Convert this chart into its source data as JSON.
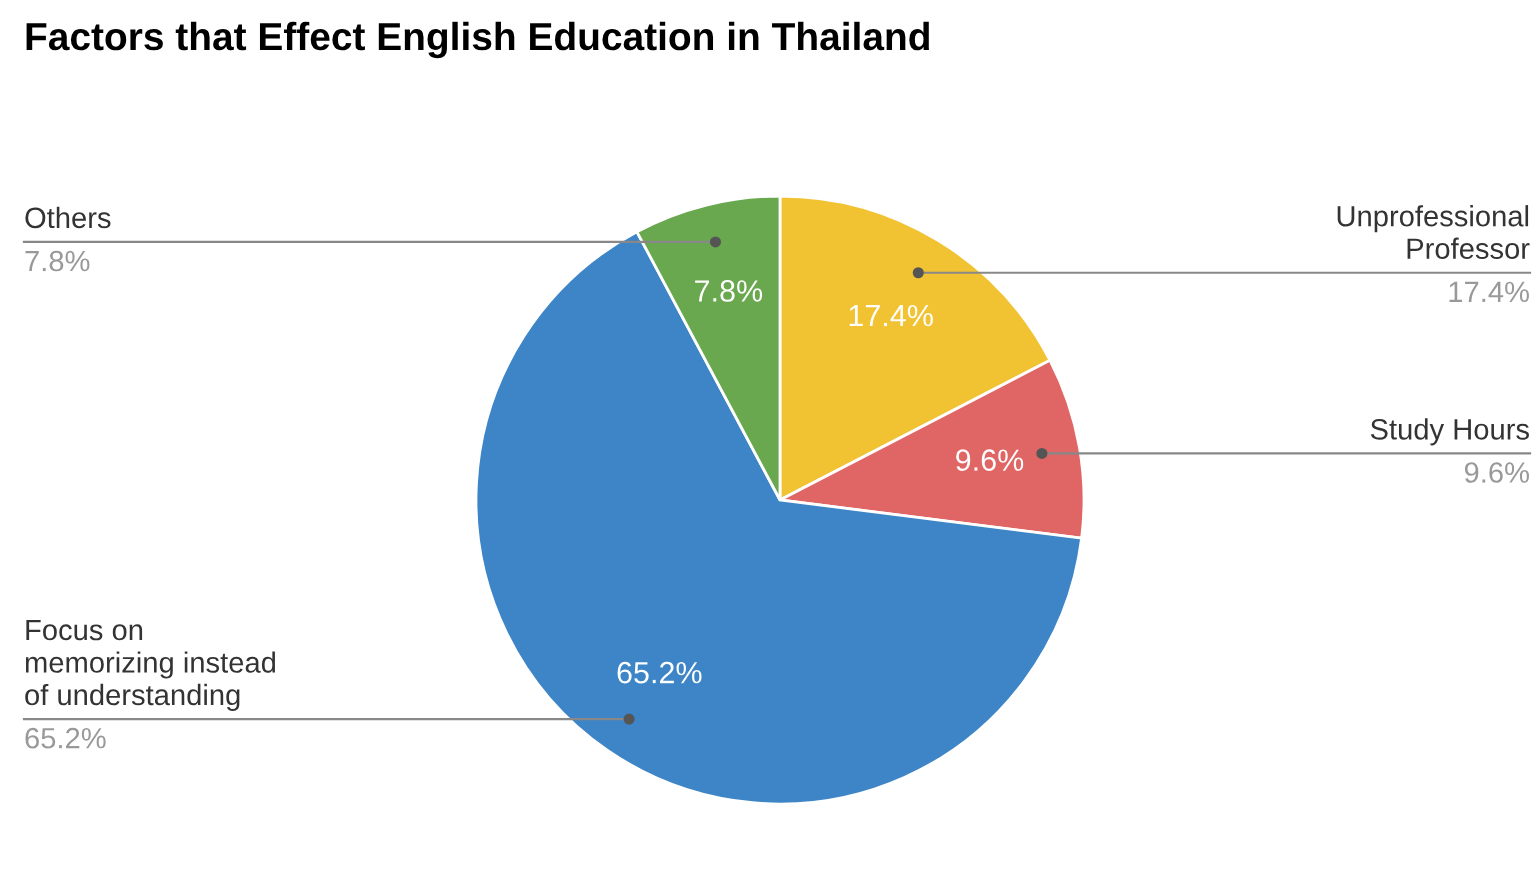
{
  "chart_data": {
    "type": "pie",
    "title": "Factors that Effect English Education in Thailand",
    "categories": [
      "Unprofessional\nProfessor",
      "Study Hours",
      "Focus on\nmemorizing instead\nof understanding",
      "Others"
    ],
    "values": [
      17.4,
      9.6,
      65.2,
      7.8
    ],
    "colors": [
      "#f1c232",
      "#e06666",
      "#3d85c6",
      "#6aa84f"
    ],
    "value_labels": [
      "17.4%",
      "9.6%",
      "65.2%",
      "7.8%"
    ]
  }
}
